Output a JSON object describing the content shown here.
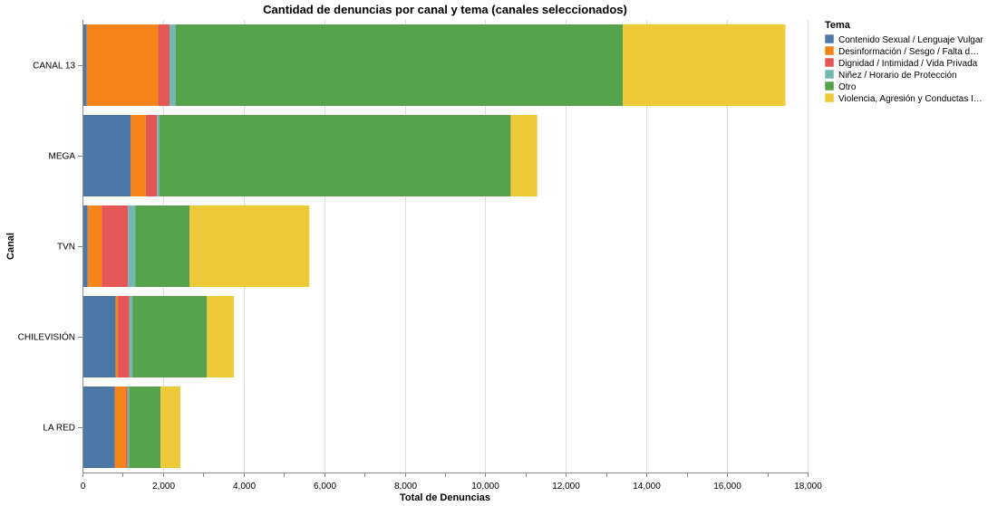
{
  "chart_data": {
    "type": "bar",
    "orientation": "horizontal",
    "stacked": true,
    "title": "Cantidad de denuncias por canal y tema (canales seleccionados)",
    "xlabel": "Total de Denuncias",
    "ylabel": "Canal",
    "xlim": [
      0,
      18000
    ],
    "xticks": [
      "0",
      "2,000",
      "4,000",
      "6,000",
      "8,000",
      "10,000",
      "12,000",
      "14,000",
      "16,000",
      "18,000"
    ],
    "grid": true,
    "legend_title": "Tema",
    "legend_position": "right",
    "categories": [
      "CANAL 13",
      "MEGA",
      "TVN",
      "CHILEVISIÓN",
      "LA RED"
    ],
    "series": [
      {
        "name": "Contenido Sexual / Lenguaje Vulgar",
        "color": "#4c78a8",
        "values": [
          100,
          1200,
          130,
          820,
          800
        ]
      },
      {
        "name": "Desinformación / Sesgo / Falta d…",
        "color": "#f58518",
        "values": [
          1780,
          370,
          350,
          60,
          280
        ]
      },
      {
        "name": "Dignidad / Intimidad / Vida Privada",
        "color": "#e45756",
        "values": [
          280,
          280,
          650,
          280,
          40
        ]
      },
      {
        "name": "Niñez / Horario de Protección",
        "color": "#72b7b2",
        "values": [
          150,
          60,
          180,
          80,
          40
        ]
      },
      {
        "name": "Otro",
        "color": "#54a24b",
        "values": [
          11100,
          8720,
          1350,
          1850,
          780
        ]
      },
      {
        "name": "Violencia, Agresión y Conductas I…",
        "color": "#eeca3b",
        "values": [
          4040,
          660,
          2970,
          670,
          490
        ]
      }
    ]
  }
}
